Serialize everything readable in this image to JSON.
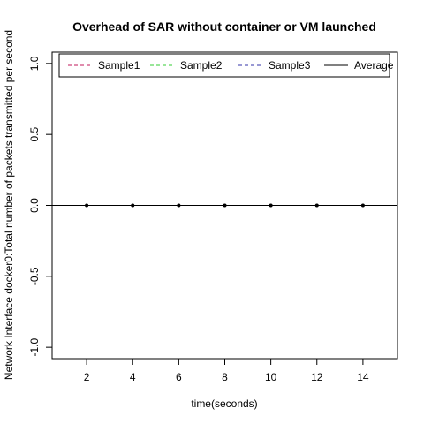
{
  "chart_data": {
    "type": "line",
    "title": "Overhead of SAR without container or VM launched",
    "xlabel": "time(seconds)",
    "ylabel": "Network Interface docker0:Total number of packets transmitted per second",
    "xlim": [
      0.5,
      15.5
    ],
    "ylim": [
      -1.08,
      1.08
    ],
    "x_ticks": [
      2,
      4,
      6,
      8,
      10,
      12,
      14
    ],
    "y_ticks": [
      -1.0,
      -0.5,
      0.0,
      0.5,
      1.0
    ],
    "y_tick_labels": [
      "-1.0",
      "-0.5",
      "0.0",
      "0.5",
      "1.0"
    ],
    "x": [
      2,
      4,
      6,
      8,
      10,
      12,
      14
    ],
    "series": [
      {
        "name": "Sample1",
        "values": [
          0,
          0,
          0,
          0,
          0,
          0,
          0
        ],
        "color": "#c2185b",
        "dash": "dashed"
      },
      {
        "name": "Sample2",
        "values": [
          0,
          0,
          0,
          0,
          0,
          0,
          0
        ],
        "color": "#33cc33",
        "dash": "dashed"
      },
      {
        "name": "Sample3",
        "values": [
          0,
          0,
          0,
          0,
          0,
          0,
          0
        ],
        "color": "#3333aa",
        "dash": "dashed"
      },
      {
        "name": "Average",
        "values": [
          0,
          0,
          0,
          0,
          0,
          0,
          0
        ],
        "color": "#000000",
        "dash": "solid"
      }
    ],
    "average_points": [
      0,
      0,
      0,
      0,
      0,
      0,
      0
    ],
    "legend_position": "top",
    "grid": false
  }
}
